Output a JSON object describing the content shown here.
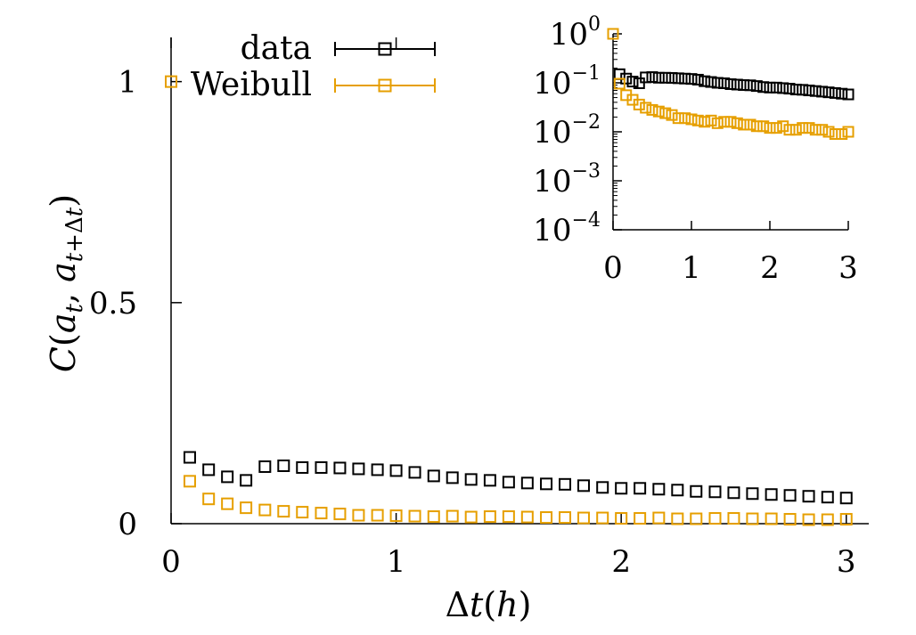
{
  "chart_data": [
    {
      "type": "scatter",
      "panel": "main",
      "xlabel": "Δt(h)",
      "ylabel": "C(a_t, a_{t+Δt})",
      "xlim": [
        0,
        3.1
      ],
      "ylim": [
        0,
        1.1
      ],
      "x_ticks": [
        "0",
        "1",
        "2",
        "3"
      ],
      "y_ticks": [
        "0",
        "0.5",
        "1"
      ],
      "y_tick_values": [
        0,
        0.5,
        1
      ],
      "x_tick_values": [
        0,
        1,
        2,
        3
      ],
      "legend": {
        "position": "top-center",
        "entries": [
          "data",
          "Weibull"
        ]
      },
      "series": [
        {
          "name": "data",
          "color": "#000000",
          "marker": "open-square",
          "x": [
            0.083,
            0.167,
            0.25,
            0.333,
            0.417,
            0.5,
            0.583,
            0.667,
            0.75,
            0.833,
            0.917,
            1.0,
            1.083,
            1.167,
            1.25,
            1.333,
            1.417,
            1.5,
            1.583,
            1.667,
            1.75,
            1.833,
            1.917,
            2.0,
            2.083,
            2.167,
            2.25,
            2.333,
            2.417,
            2.5,
            2.583,
            2.667,
            2.75,
            2.833,
            2.917,
            3.0
          ],
          "y": [
            0.15,
            0.122,
            0.106,
            0.098,
            0.129,
            0.131,
            0.127,
            0.127,
            0.126,
            0.124,
            0.122,
            0.12,
            0.116,
            0.108,
            0.104,
            0.1,
            0.098,
            0.094,
            0.092,
            0.09,
            0.089,
            0.086,
            0.082,
            0.08,
            0.08,
            0.078,
            0.076,
            0.073,
            0.072,
            0.07,
            0.068,
            0.066,
            0.064,
            0.062,
            0.06,
            0.058
          ]
        },
        {
          "name": "Weibull",
          "color": "#E69F00",
          "marker": "open-square",
          "x": [
            0.0,
            0.083,
            0.167,
            0.25,
            0.333,
            0.417,
            0.5,
            0.583,
            0.667,
            0.75,
            0.833,
            0.917,
            1.0,
            1.083,
            1.167,
            1.25,
            1.333,
            1.417,
            1.5,
            1.583,
            1.667,
            1.75,
            1.833,
            1.917,
            2.0,
            2.083,
            2.167,
            2.25,
            2.333,
            2.417,
            2.5,
            2.583,
            2.667,
            2.75,
            2.833,
            2.917,
            3.0
          ],
          "y": [
            1.0,
            0.096,
            0.056,
            0.045,
            0.036,
            0.031,
            0.028,
            0.026,
            0.024,
            0.022,
            0.019,
            0.019,
            0.018,
            0.017,
            0.016,
            0.017,
            0.015,
            0.016,
            0.016,
            0.015,
            0.014,
            0.014,
            0.013,
            0.013,
            0.012,
            0.012,
            0.013,
            0.011,
            0.011,
            0.012,
            0.012,
            0.011,
            0.011,
            0.01,
            0.009,
            0.009,
            0.01
          ]
        }
      ]
    },
    {
      "type": "scatter",
      "panel": "inset",
      "yscale": "log",
      "xlim": [
        0,
        3.0
      ],
      "ylim": [
        0.0001,
        1
      ],
      "x_ticks": [
        "0",
        "1",
        "2",
        "3"
      ],
      "x_tick_values": [
        0,
        1,
        2,
        3
      ],
      "y_tick_values": [
        1,
        0.1,
        0.01,
        0.001,
        0.0001
      ],
      "y_ticks": [
        {
          "base": "10",
          "exp": "0"
        },
        {
          "base": "10",
          "exp": "−1"
        },
        {
          "base": "10",
          "exp": "−2"
        },
        {
          "base": "10",
          "exp": "−3"
        },
        {
          "base": "10",
          "exp": "−4"
        }
      ],
      "series_ref": [
        "data",
        "Weibull"
      ]
    }
  ]
}
